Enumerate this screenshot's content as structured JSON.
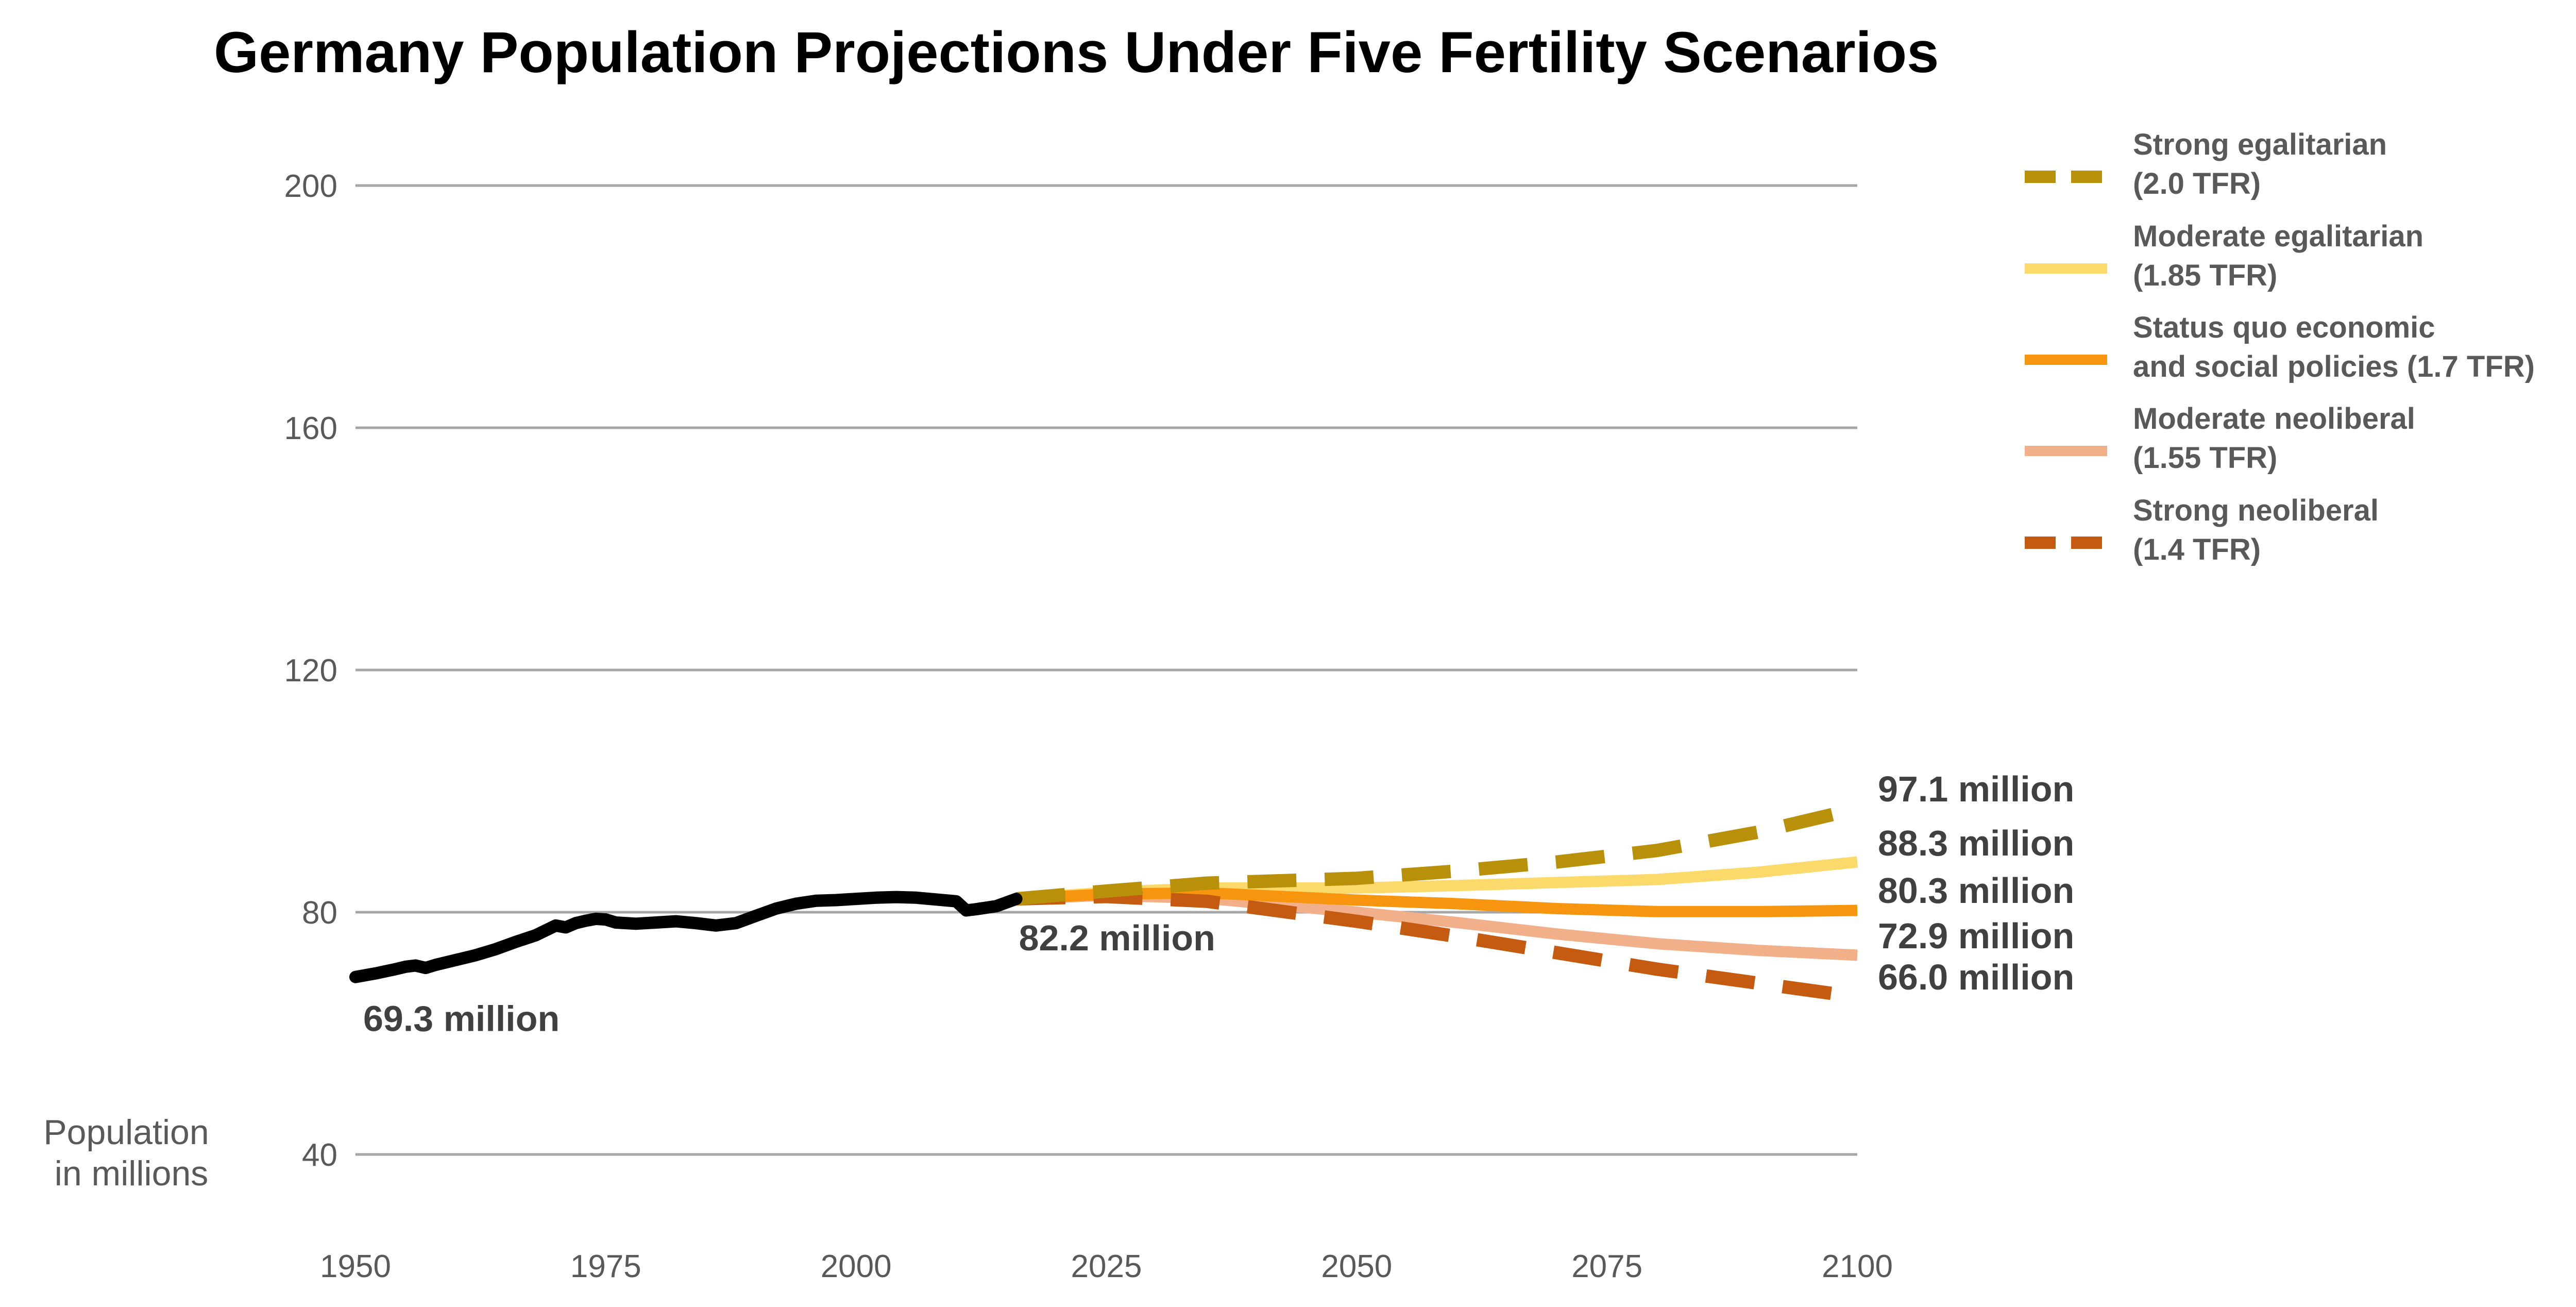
{
  "chart_data": {
    "type": "line",
    "title": "Germany Population Projections Under Five Fertility Scenarios",
    "ylabel": [
      "Population",
      "in millions"
    ],
    "xlim": [
      1950,
      2100
    ],
    "ylim": [
      40,
      200
    ],
    "xticks": [
      1950,
      1975,
      2000,
      2025,
      2050,
      2075,
      2100
    ],
    "yticks": [
      40,
      80,
      120,
      160,
      200
    ],
    "grid": "horizontal",
    "legend_position": "top-right",
    "historical": {
      "x": [
        1950,
        1952,
        1954,
        1955,
        1956,
        1957,
        1958,
        1960,
        1962,
        1964,
        1966,
        1968,
        1970,
        1971,
        1972,
        1973,
        1974,
        1975,
        1976,
        1978,
        1980,
        1982,
        1984,
        1986,
        1988,
        1990,
        1992,
        1994,
        1996,
        1998,
        2000,
        2002,
        2004,
        2006,
        2008,
        2010,
        2011,
        2012,
        2014,
        2016
      ],
      "y": [
        69.3,
        69.9,
        70.6,
        71.0,
        71.2,
        70.8,
        71.3,
        72.1,
        72.9,
        73.9,
        75.1,
        76.2,
        77.8,
        77.5,
        78.2,
        78.6,
        78.9,
        78.8,
        78.3,
        78.1,
        78.3,
        78.5,
        78.2,
        77.8,
        78.2,
        79.4,
        80.6,
        81.4,
        81.9,
        82.0,
        82.2,
        82.4,
        82.5,
        82.4,
        82.1,
        81.8,
        80.3,
        80.5,
        81.0,
        82.2
      ]
    },
    "series": [
      {
        "name": "Strong egalitarian (2.0 TFR)",
        "legend_lines": [
          "Strong egalitarian",
          "(2.0 TFR)"
        ],
        "end_label": "97.1 million",
        "color": "#B8900A",
        "dashed": true,
        "x": [
          2016,
          2025,
          2035,
          2050,
          2060,
          2070,
          2080,
          2090,
          2100
        ],
        "y": [
          82.2,
          83.5,
          84.8,
          85.6,
          86.8,
          88.3,
          90.2,
          93.2,
          97.1
        ]
      },
      {
        "name": "Moderate egalitarian (1.85 TFR)",
        "legend_lines": [
          "Moderate egalitarian",
          "(1.85 TFR)"
        ],
        "end_label": "88.3 million",
        "color": "#FCD96B",
        "dashed": false,
        "x": [
          2016,
          2025,
          2035,
          2050,
          2060,
          2070,
          2080,
          2090,
          2100
        ],
        "y": [
          82.2,
          83.3,
          84.0,
          84.0,
          84.4,
          84.9,
          85.4,
          86.6,
          88.3
        ]
      },
      {
        "name": "Status quo economic and social policies (1.7 TFR)",
        "legend_lines": [
          "Status quo economic",
          "and social policies (1.7 TFR)"
        ],
        "end_label": "80.3 million",
        "color": "#F7950F",
        "dashed": false,
        "x": [
          2016,
          2025,
          2035,
          2050,
          2060,
          2070,
          2080,
          2090,
          2100
        ],
        "y": [
          82.2,
          83.0,
          83.2,
          82.0,
          81.4,
          80.6,
          80.1,
          80.1,
          80.3
        ]
      },
      {
        "name": "Moderate neoliberal (1.55 TFR)",
        "legend_lines": [
          "Moderate neoliberal",
          "(1.55 TFR)"
        ],
        "end_label": "72.9 million",
        "color": "#F2B08A",
        "dashed": false,
        "x": [
          2016,
          2025,
          2035,
          2050,
          2060,
          2070,
          2080,
          2090,
          2100
        ],
        "y": [
          82.2,
          82.8,
          82.3,
          80.0,
          78.3,
          76.4,
          74.8,
          73.7,
          72.9
        ]
      },
      {
        "name": "Strong neoliberal (1.4 TFR)",
        "legend_lines": [
          "Strong neoliberal",
          "(1.4 TFR)"
        ],
        "end_label": "66.0 million",
        "color": "#C55A11",
        "dashed": true,
        "x": [
          2016,
          2025,
          2035,
          2050,
          2060,
          2070,
          2080,
          2090,
          2100
        ],
        "y": [
          82.2,
          82.6,
          81.8,
          78.5,
          76.0,
          73.3,
          70.6,
          68.3,
          66.0
        ]
      }
    ],
    "annotations": [
      {
        "text": "69.3 million",
        "x": 1950,
        "y": 69.3
      },
      {
        "text": "82.2 million",
        "x": 2016,
        "y": 82.2
      }
    ]
  }
}
